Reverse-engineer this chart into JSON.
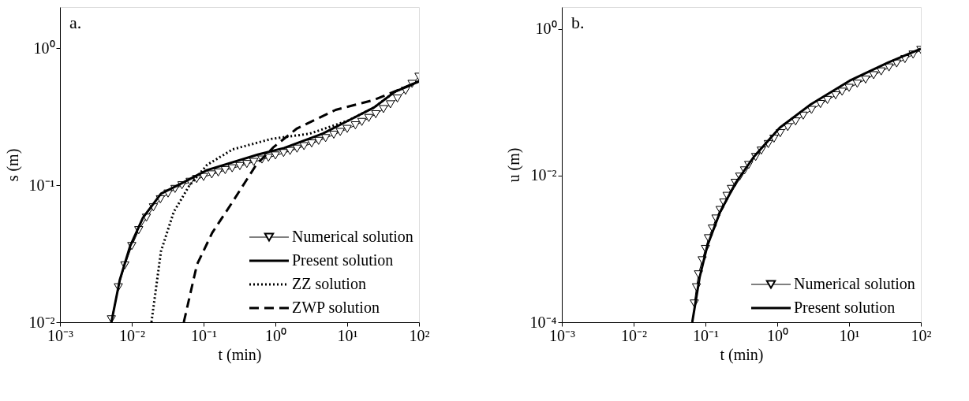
{
  "chart_data": [
    {
      "type": "line",
      "xlabel": "t (min)",
      "ylabel": "s (m)",
      "annotations": [
        "a."
      ],
      "log": "xy",
      "grid": false,
      "legend": "bottom right",
      "xlim": [
        0.001,
        100
      ],
      "ylim": [
        0.01,
        2
      ],
      "xticks": [
        {
          "value": 0.001,
          "label": "10⁻³"
        },
        {
          "value": 0.01,
          "label": "10⁻²"
        },
        {
          "value": 0.1,
          "label": "10⁻¹"
        },
        {
          "value": 1,
          "label": "10⁰"
        },
        {
          "value": 10,
          "label": "10¹"
        },
        {
          "value": 100,
          "label": "10²"
        }
      ],
      "yticks": [
        {
          "value": 0.01,
          "label": "10⁻²"
        },
        {
          "value": 0.1,
          "label": "10⁻¹"
        },
        {
          "value": 1,
          "label": "10⁰"
        }
      ],
      "series": [
        {
          "name": "Numerical solution",
          "color": "#000000",
          "marker": "triangle",
          "line_style": "solid",
          "x": [
            0.0052,
            0.0065,
            0.008,
            0.01,
            0.0125,
            0.016,
            0.02,
            0.025,
            0.032,
            0.04,
            0.05,
            0.065,
            0.08,
            0.1,
            0.13,
            0.16,
            0.2,
            0.25,
            0.32,
            0.4,
            0.5,
            0.65,
            0.8,
            1,
            1.3,
            1.6,
            2,
            2.5,
            3.2,
            4,
            5,
            6.5,
            8,
            10,
            13,
            16,
            20,
            25,
            32,
            40,
            50,
            65,
            80,
            100
          ],
          "values": [
            0.0105,
            0.018,
            0.026,
            0.036,
            0.047,
            0.058,
            0.069,
            0.079,
            0.087,
            0.094,
            0.1,
            0.106,
            0.111,
            0.115,
            0.12,
            0.124,
            0.129,
            0.133,
            0.138,
            0.143,
            0.148,
            0.154,
            0.159,
            0.165,
            0.172,
            0.178,
            0.185,
            0.193,
            0.202,
            0.211,
            0.221,
            0.234,
            0.245,
            0.258,
            0.274,
            0.29,
            0.31,
            0.33,
            0.36,
            0.39,
            0.43,
            0.49,
            0.55,
            0.62
          ]
        },
        {
          "name": "Present solution",
          "color": "#000000",
          "line_style": "solid",
          "x": [
            0.0052,
            0.0068,
            0.0095,
            0.0143,
            0.0255,
            0.049,
            0.112,
            0.58,
            1.32,
            4.56,
            10.4,
            23.7,
            45.7,
            100
          ],
          "values": [
            0.01,
            0.0203,
            0.036,
            0.058,
            0.0867,
            0.103,
            0.129,
            0.168,
            0.187,
            0.238,
            0.297,
            0.37,
            0.48,
            0.574
          ]
        },
        {
          "name": "ZZ solution",
          "color": "#000000",
          "line_style": "dotted",
          "x": [
            0.0188,
            0.0255,
            0.0385,
            0.063,
            0.112,
            0.255,
            0.88,
            3.0,
            10.4,
            23.7,
            45.7,
            100
          ],
          "values": [
            0.01,
            0.033,
            0.064,
            0.099,
            0.141,
            0.183,
            0.218,
            0.238,
            0.297,
            0.37,
            0.48,
            0.574
          ]
        },
        {
          "name": "ZWP solution",
          "color": "#000000",
          "line_style": "dashed",
          "x": [
            0.053,
            0.081,
            0.132,
            0.255,
            0.54,
            0.955,
            2.0,
            6.9,
            23.7,
            100
          ],
          "values": [
            0.01,
            0.0264,
            0.045,
            0.076,
            0.141,
            0.191,
            0.26,
            0.355,
            0.42,
            0.574
          ]
        }
      ]
    },
    {
      "type": "line",
      "xlabel": "t (min)",
      "ylabel": "u (m)",
      "annotations": [
        "b."
      ],
      "log": "xy",
      "grid": false,
      "legend": "bottom right",
      "xlim": [
        0.001,
        100
      ],
      "ylim": [
        0.0001,
        2
      ],
      "xticks": [
        {
          "value": 0.001,
          "label": "10⁻³"
        },
        {
          "value": 0.01,
          "label": "10⁻²"
        },
        {
          "value": 0.1,
          "label": "10⁻¹"
        },
        {
          "value": 1,
          "label": "10⁰"
        },
        {
          "value": 10,
          "label": "10¹"
        },
        {
          "value": 100,
          "label": "10²"
        }
      ],
      "yticks": [
        {
          "value": 0.0001,
          "label": "10⁻⁴"
        },
        {
          "value": 0.01,
          "label": "10⁻²"
        },
        {
          "value": 1,
          "label": "10⁰"
        }
      ],
      "series": [
        {
          "name": "Numerical solution",
          "color": "#000000",
          "marker": "triangle",
          "line_style": "solid",
          "x": [
            0.07,
            0.075,
            0.08,
            0.09,
            0.1,
            0.11,
            0.125,
            0.14,
            0.16,
            0.18,
            0.2,
            0.23,
            0.26,
            0.3,
            0.35,
            0.4,
            0.5,
            0.6,
            0.75,
            0.9,
            1.1,
            1.4,
            1.8,
            2.3,
            3,
            4,
            5,
            6.5,
            8,
            10,
            13,
            17,
            22,
            28,
            36,
            46,
            60,
            78,
            100
          ],
          "values": [
            0.00018,
            0.0003,
            0.00045,
            0.0007,
            0.001,
            0.0014,
            0.0019,
            0.0026,
            0.0034,
            0.0043,
            0.0053,
            0.0066,
            0.008,
            0.0097,
            0.0118,
            0.014,
            0.018,
            0.022,
            0.027,
            0.032,
            0.038,
            0.046,
            0.055,
            0.066,
            0.079,
            0.095,
            0.108,
            0.125,
            0.14,
            0.158,
            0.18,
            0.205,
            0.235,
            0.265,
            0.3,
            0.34,
            0.39,
            0.45,
            0.52
          ]
        },
        {
          "name": "Present solution",
          "color": "#000000",
          "line_style": "solid",
          "x": [
            0.0655,
            0.083,
            0.106,
            0.16,
            0.264,
            0.47,
            1.08,
            2.93,
            10.2,
            35,
            100
          ],
          "values": [
            0.0001,
            0.00041,
            0.0011,
            0.0032,
            0.008,
            0.018,
            0.045,
            0.094,
            0.198,
            0.35,
            0.54
          ]
        }
      ]
    }
  ]
}
